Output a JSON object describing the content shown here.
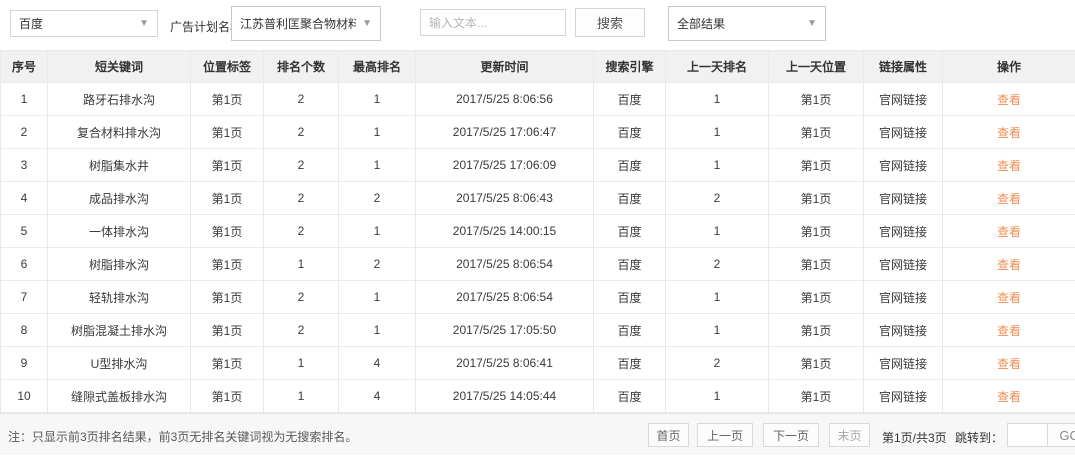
{
  "toolbar": {
    "engine_select": {
      "value": "百度"
    },
    "plan_label": "广告计划名称",
    "plan_select": {
      "value": "江苏普利匡聚合物材料..."
    },
    "search_input": {
      "placeholder": "输入文本..."
    },
    "search_button": "搜索",
    "result_select": {
      "value": "全部结果"
    }
  },
  "table": {
    "columns": [
      "序号",
      "短关键词",
      "位置标签",
      "排名个数",
      "最高排名",
      "更新时间",
      "搜索引擎",
      "上一天排名",
      "上一天位置",
      "链接属性",
      "操作"
    ],
    "action_label": "查看",
    "rows": [
      [
        "1",
        "路牙石排水沟",
        "第1页",
        "2",
        "1",
        "2017/5/25 8:06:56",
        "百度",
        "1",
        "第1页",
        "官网链接"
      ],
      [
        "2",
        "复合材料排水沟",
        "第1页",
        "2",
        "1",
        "2017/5/25 17:06:47",
        "百度",
        "1",
        "第1页",
        "官网链接"
      ],
      [
        "3",
        "树脂集水井",
        "第1页",
        "2",
        "1",
        "2017/5/25 17:06:09",
        "百度",
        "1",
        "第1页",
        "官网链接"
      ],
      [
        "4",
        "成品排水沟",
        "第1页",
        "2",
        "2",
        "2017/5/25 8:06:43",
        "百度",
        "2",
        "第1页",
        "官网链接"
      ],
      [
        "5",
        "一体排水沟",
        "第1页",
        "2",
        "1",
        "2017/5/25 14:00:15",
        "百度",
        "1",
        "第1页",
        "官网链接"
      ],
      [
        "6",
        "树脂排水沟",
        "第1页",
        "1",
        "2",
        "2017/5/25 8:06:54",
        "百度",
        "2",
        "第1页",
        "官网链接"
      ],
      [
        "7",
        "轻轨排水沟",
        "第1页",
        "2",
        "1",
        "2017/5/25 8:06:54",
        "百度",
        "1",
        "第1页",
        "官网链接"
      ],
      [
        "8",
        "树脂混凝土排水沟",
        "第1页",
        "2",
        "1",
        "2017/5/25 17:05:50",
        "百度",
        "1",
        "第1页",
        "官网链接"
      ],
      [
        "9",
        "U型排水沟",
        "第1页",
        "1",
        "4",
        "2017/5/25 8:06:41",
        "百度",
        "2",
        "第1页",
        "官网链接"
      ],
      [
        "10",
        "缝隙式盖板排水沟",
        "第1页",
        "1",
        "4",
        "2017/5/25 14:05:44",
        "百度",
        "1",
        "第1页",
        "官网链接"
      ]
    ]
  },
  "footer": {
    "note": "注：只显示前3页排名结果，前3页无排名关键词视为无搜索排名。",
    "pagination": {
      "first": "首页",
      "prev": "上一页",
      "next": "下一页",
      "last": "末页",
      "page_info": "第1页/共3页",
      "jump_label": "跳转到：",
      "go": "GO"
    }
  },
  "colors": {
    "accent_link": "#ee8f55",
    "header_bg": "#f1f1f1",
    "table_border": "#e9e9e9",
    "footer_bg": "#f7f7f7"
  }
}
